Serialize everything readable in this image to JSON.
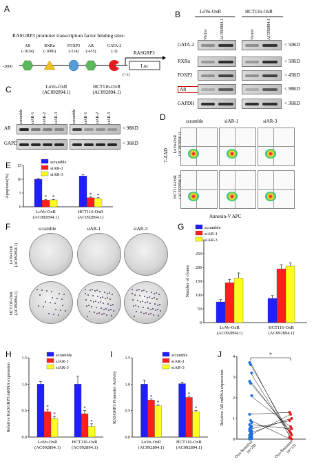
{
  "panels": {
    "A": {
      "letter": "A",
      "title": "RASGRP3 promoter transcription factor binding sites:",
      "sites": [
        {
          "name": "AR",
          "pos": "(-1634)",
          "shape": "hexagon",
          "color": "#5cb85c"
        },
        {
          "name": "RXRα",
          "pos": "(-1086)",
          "shape": "triangle",
          "color": "#f0c020"
        },
        {
          "name": "FOXP3",
          "pos": "(-514)",
          "shape": "circle",
          "color": "#5b9bd5"
        },
        {
          "name": "AR",
          "pos": "(-455)",
          "shape": "hexagon",
          "color": "#5cb85c"
        },
        {
          "name": "GATA-2",
          "pos": "(-3)",
          "shape": "pacman",
          "color": "#e02020"
        }
      ],
      "start_label": "-2000",
      "tss_label": "(+1)",
      "gene_label": "RASGRP3",
      "reporter_label": "Luc"
    },
    "B": {
      "letter": "B",
      "groups": [
        "LoVo-OxR",
        "HCT116-OxR"
      ],
      "lanes": [
        "Vector",
        "AC092894.1",
        "Vector",
        "AC092894.1"
      ],
      "rows": [
        {
          "label": "GATA-2",
          "size": "50KD",
          "boxed": false
        },
        {
          "label": "RXRα",
          "size": "50KD",
          "boxed": false
        },
        {
          "label": "FOXP3",
          "size": "45KD",
          "boxed": false
        },
        {
          "label": "AR",
          "size": "98KD",
          "boxed": true
        },
        {
          "label": "GAPDH",
          "size": "36KD",
          "boxed": false
        }
      ]
    },
    "C": {
      "letter": "C",
      "groups": [
        "LoVo-OxR\n(AC092894.1)",
        "HCT116-OxR\n(AC092894.1)"
      ],
      "group_lines": [
        [
          "LoVo-OxR",
          "(AC092894.1)"
        ],
        [
          "HCT116-OxR",
          "(AC092894.1)"
        ]
      ],
      "lanes": [
        "scramble",
        "siAR-1",
        "siAR-2",
        "siAR-3",
        "scramble",
        "siAR-1",
        "siAR-2",
        "siAR-3"
      ],
      "rows": [
        {
          "label": "AR",
          "size": "98KD"
        },
        {
          "label": "GAPDH",
          "size": "36KD"
        }
      ]
    },
    "D": {
      "letter": "D",
      "cols": [
        "scramble",
        "siAR-1",
        "siAR-3"
      ],
      "rows": [
        [
          "LoVo-OxR",
          "(AC092894.1)"
        ],
        [
          "HCT116-OxR",
          "(AC092894.1)"
        ]
      ],
      "ylabel": "7-AAD",
      "xlabel": "Annexin-V APC"
    },
    "E": {
      "letter": "E"
    },
    "F": {
      "letter": "F",
      "cols": [
        "scramble",
        "siAR-1",
        "siAR-3"
      ],
      "rows": [
        [
          "LoVo-OxR",
          "(AC092894.1)"
        ],
        [
          "HCT116-OxR",
          "(AC092894.1)"
        ]
      ]
    },
    "G": {
      "letter": "G"
    },
    "H": {
      "letter": "H"
    },
    "I": {
      "letter": "I"
    },
    "J": {
      "letter": "J"
    }
  },
  "colors": {
    "scramble": "#1f1fff",
    "siAR1": "#ff1f1f",
    "siAR3": "#ffff1f",
    "sens": "#1f6fe0",
    "resis": "#e02020"
  },
  "chart_data": [
    {
      "id": "E",
      "type": "bar",
      "categories": [
        [
          "LoVo-OxR",
          "(AC092894.1)"
        ],
        [
          "HCT116-OxR",
          "(AC092894.1)"
        ]
      ],
      "series": [
        {
          "name": "scramble",
          "values": [
            10.0,
            11.2
          ],
          "err": [
            0.3,
            0.4
          ]
        },
        {
          "name": "siAR-1",
          "values": [
            2.4,
            3.3
          ],
          "err": [
            0.3,
            0.3
          ]
        },
        {
          "name": "siAR-3",
          "values": [
            2.5,
            3.0
          ],
          "err": [
            0.2,
            0.3
          ]
        }
      ],
      "ylabel": "Apoptosis(%)",
      "ylim": [
        0,
        15
      ],
      "yticks": [
        0,
        5,
        10,
        15
      ],
      "annotations": [
        "*",
        "*",
        "*",
        "*"
      ],
      "legend": "top-left"
    },
    {
      "id": "G",
      "type": "bar",
      "categories": [
        [
          "LoVo-OxR",
          "(AC092894.1)"
        ],
        [
          "HCT116-OxR",
          "(AC092894.1)"
        ]
      ],
      "series": [
        {
          "name": "scramble",
          "values": [
            75,
            88
          ],
          "err": [
            8,
            10
          ]
        },
        {
          "name": "siAR-1",
          "values": [
            145,
            195
          ],
          "err": [
            12,
            15
          ]
        },
        {
          "name": "siAR-3",
          "values": [
            162,
            205
          ],
          "err": [
            18,
            12
          ]
        }
      ],
      "ylabel": "Number of clones",
      "ylim": [
        0,
        300
      ],
      "yticks": [
        0,
        50,
        100,
        150,
        200,
        250,
        300
      ],
      "legend": "top-left"
    },
    {
      "id": "H",
      "type": "bar",
      "categories": [
        [
          "LoVo-OxR",
          "(AC092894.1)"
        ],
        [
          "HCT116-OxR",
          "(AC092894.1)"
        ]
      ],
      "series": [
        {
          "name": "scramble",
          "values": [
            1.0,
            1.0
          ],
          "err": [
            0.05,
            0.15
          ]
        },
        {
          "name": "siAR-1",
          "values": [
            0.48,
            0.44
          ],
          "err": [
            0.05,
            0.06
          ]
        },
        {
          "name": "siAR-3",
          "values": [
            0.35,
            0.2
          ],
          "err": [
            0.04,
            0.05
          ]
        }
      ],
      "ylabel": "Relative RASGRP3 mRNA expression",
      "ylim": [
        0,
        1.5
      ],
      "yticks": [
        0.0,
        0.5,
        1.0,
        1.5
      ],
      "annotations": [
        "*",
        "*",
        "*",
        "*"
      ],
      "legend": "top-right"
    },
    {
      "id": "I",
      "type": "bar",
      "categories": [
        [
          "LoVo-OxR",
          "(AC092894.1)"
        ],
        [
          "HCT116-OxR",
          "(AC092894.1)"
        ]
      ],
      "series": [
        {
          "name": "scramble",
          "values": [
            1.0,
            1.01
          ],
          "err": [
            0.08,
            0.03
          ]
        },
        {
          "name": "siAR-1",
          "values": [
            0.7,
            0.75
          ],
          "err": [
            0.02,
            0.02
          ]
        },
        {
          "name": "siAR-3",
          "values": [
            0.59,
            0.48
          ],
          "err": [
            0.02,
            0.02
          ]
        }
      ],
      "ylabel": "RASGRP3 Promoter Activity",
      "ylim": [
        0,
        1.5
      ],
      "yticks": [
        0.0,
        0.5,
        1.0,
        1.5
      ],
      "annotations": [
        "*",
        "*",
        "*",
        "*"
      ],
      "legend": "top-right"
    },
    {
      "id": "J",
      "type": "scatter",
      "categories": [
        "Oxa-Sensitive (n=28)",
        "Oxa-Resistant (n=12)"
      ],
      "tick_labels": [
        [
          "Oxa-Sensitive",
          "(n=28)"
        ],
        [
          "Oxa-Resistant",
          "(n=12)"
        ]
      ],
      "sensitive": [
        3.7,
        3.6,
        3.2,
        2.8,
        2.7,
        2.1,
        1.2,
        0.9,
        0.8,
        0.7,
        0.6,
        0.6,
        0.5,
        0.5,
        0.4,
        0.4,
        0.3,
        0.3,
        0.2,
        0.2,
        0.2,
        0.1,
        0.1,
        0.1,
        0.05,
        0.05,
        0.02,
        0.0
      ],
      "resistant": [
        1.3,
        1.2,
        1.0,
        0.9,
        0.6,
        0.5,
        0.4,
        0.3,
        0.2,
        0.1,
        0.05,
        0.0
      ],
      "pairs": [
        [
          3.7,
          0.05
        ],
        [
          3.6,
          0.2
        ],
        [
          3.2,
          0.1
        ],
        [
          2.8,
          0.3
        ],
        [
          2.7,
          0.4
        ],
        [
          2.1,
          0.6
        ],
        [
          1.2,
          1.3
        ],
        [
          0.9,
          0.0
        ],
        [
          0.7,
          0.5
        ],
        [
          0.5,
          0.9
        ],
        [
          0.3,
          1.0
        ],
        [
          0.2,
          1.2
        ]
      ],
      "ylabel": "Relative AR mRNA expression",
      "ylim": [
        0,
        4
      ],
      "yticks": [
        0,
        1,
        2,
        3,
        4
      ],
      "annotations": [
        "*"
      ]
    }
  ]
}
